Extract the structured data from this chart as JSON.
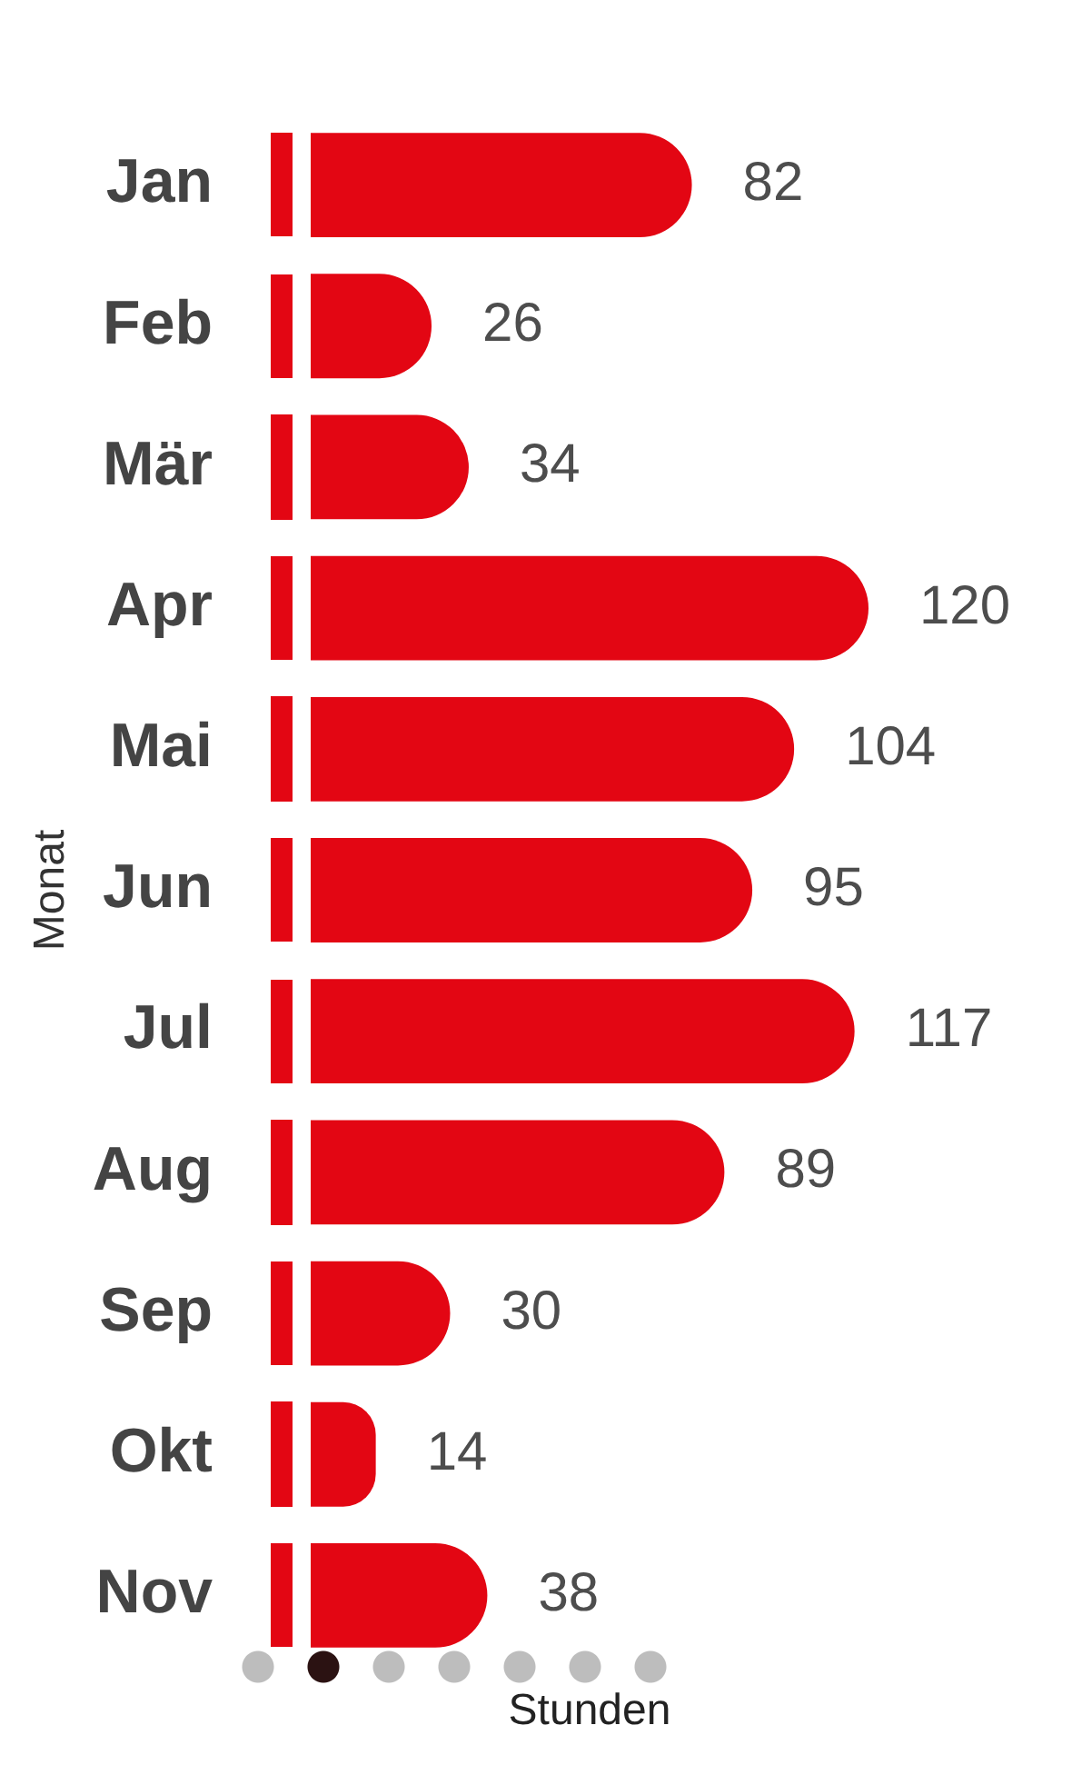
{
  "chart_data": {
    "type": "bar",
    "orientation": "horizontal",
    "categories": [
      "Jan",
      "Feb",
      "Mär",
      "Apr",
      "Mai",
      "Jun",
      "Jul",
      "Aug",
      "Sep",
      "Okt",
      "Nov"
    ],
    "values": [
      82,
      26,
      34,
      120,
      104,
      95,
      117,
      89,
      30,
      14,
      38
    ],
    "color": "#e30613",
    "xlabel": "Stunden",
    "ylabel": "Monat",
    "data_labels": true,
    "tick_labels": "y"
  }
}
